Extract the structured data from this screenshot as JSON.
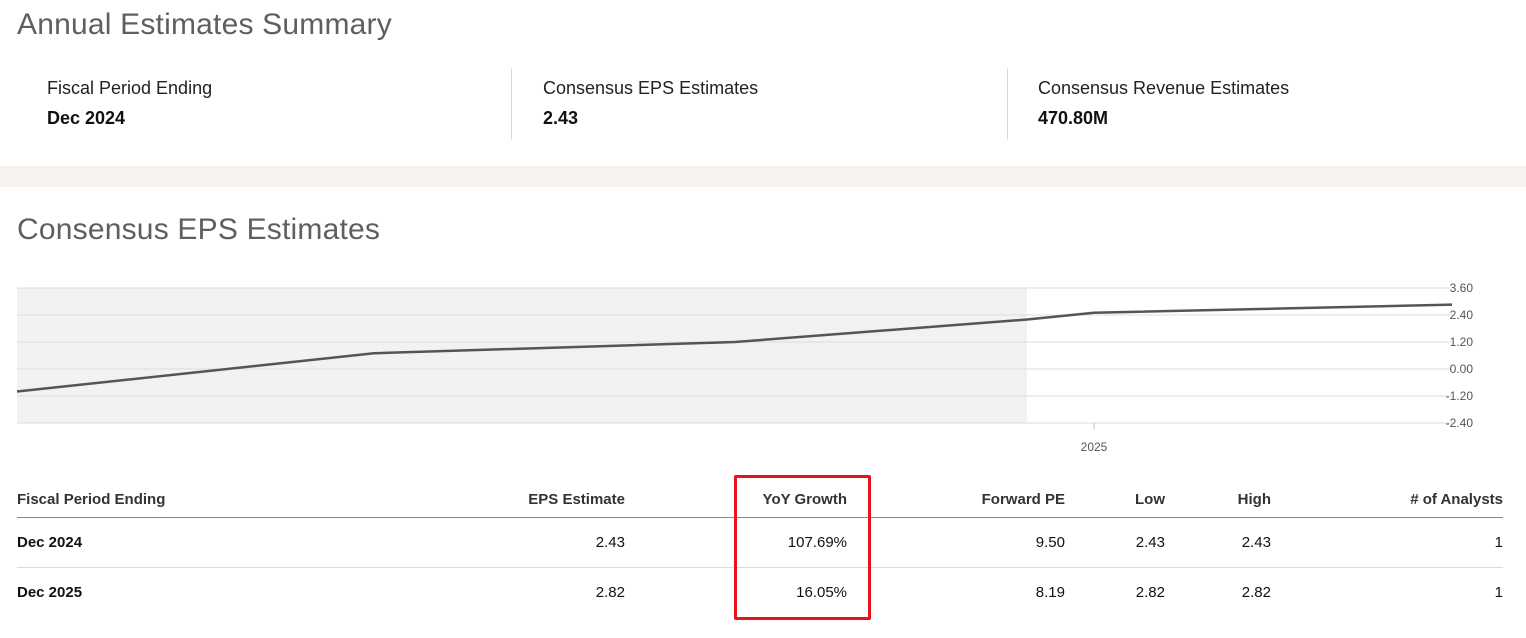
{
  "summary": {
    "title": "Annual Estimates Summary",
    "items": [
      {
        "label": "Fiscal Period Ending",
        "value": "Dec 2024"
      },
      {
        "label": "Consensus EPS Estimates",
        "value": "2.43"
      },
      {
        "label": "Consensus Revenue Estimates",
        "value": "470.80M"
      }
    ]
  },
  "eps": {
    "title": "Consensus EPS Estimates"
  },
  "chart_data": {
    "type": "line",
    "x": [
      "",
      "",
      "",
      "",
      "2025",
      ""
    ],
    "series": [
      {
        "values": [
          -1.0,
          0.7,
          1.2,
          2.2,
          2.5,
          2.86
        ]
      }
    ],
    "ylim": [
      -2.4,
      3.6
    ],
    "yticks": [
      "3.60",
      "2.40",
      "1.20",
      "0.00",
      "-1.20",
      "-2.40"
    ],
    "xtick_labels": [
      "2025"
    ],
    "grid": true,
    "shaded_historical_region": true,
    "colors": {
      "line": "#555555",
      "shade": "#f2f2f5",
      "grid": "#dcdcdc"
    }
  },
  "table": {
    "headers": [
      "Fiscal Period Ending",
      "EPS Estimate",
      "YoY Growth",
      "Forward PE",
      "Low",
      "High",
      "# of Analysts"
    ],
    "rows": [
      [
        "Dec 2024",
        "2.43",
        "107.69%",
        "9.50",
        "2.43",
        "2.43",
        "1"
      ],
      [
        "Dec 2025",
        "2.82",
        "16.05%",
        "8.19",
        "2.82",
        "2.82",
        "1"
      ]
    ]
  },
  "highlight": {
    "column": "YoY Growth",
    "color": "#e8141b"
  }
}
